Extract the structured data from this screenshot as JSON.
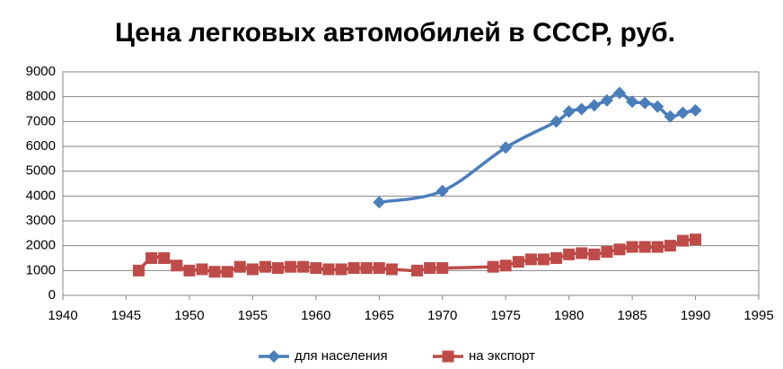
{
  "chart_data": {
    "type": "line",
    "title": "Цена легковых автомобилей в СССР, руб.",
    "xlim": [
      1940,
      1995
    ],
    "xticks": [
      1940,
      1945,
      1950,
      1955,
      1960,
      1965,
      1970,
      1975,
      1980,
      1985,
      1990,
      1995
    ],
    "ylim": [
      0,
      9000
    ],
    "yticks": [
      0,
      1000,
      2000,
      3000,
      4000,
      5000,
      6000,
      7000,
      8000,
      9000
    ],
    "grid": true,
    "legend": "bottom",
    "series": [
      {
        "name": "для населения",
        "color": "#4a7ebb",
        "marker": "diamond",
        "x": [
          1965,
          1970,
          1975,
          1979,
          1980,
          1981,
          1982,
          1983,
          1984,
          1985,
          1986,
          1987,
          1988,
          1989,
          1990
        ],
        "values": [
          3750,
          4200,
          5950,
          7000,
          7400,
          7500,
          7650,
          7850,
          8150,
          7800,
          7750,
          7600,
          7200,
          7350,
          7450
        ]
      },
      {
        "name": "на экспорт",
        "color": "#be4b48",
        "marker": "square",
        "x": [
          1946,
          1947,
          1948,
          1949,
          1950,
          1951,
          1952,
          1953,
          1954,
          1955,
          1956,
          1957,
          1958,
          1959,
          1960,
          1961,
          1962,
          1963,
          1964,
          1965,
          1966,
          1968,
          1969,
          1970,
          1974,
          1975,
          1976,
          1977,
          1978,
          1979,
          1980,
          1981,
          1982,
          1983,
          1984,
          1985,
          1986,
          1987,
          1988,
          1989,
          1990
        ],
        "values": [
          1000,
          1500,
          1500,
          1200,
          1000,
          1050,
          950,
          950,
          1150,
          1050,
          1150,
          1100,
          1150,
          1150,
          1100,
          1050,
          1050,
          1100,
          1100,
          1100,
          1050,
          1000,
          1100,
          1100,
          1150,
          1200,
          1350,
          1450,
          1450,
          1500,
          1650,
          1700,
          1650,
          1750,
          1850,
          1950,
          1950,
          1950,
          2000,
          2200,
          2250
        ]
      }
    ]
  }
}
